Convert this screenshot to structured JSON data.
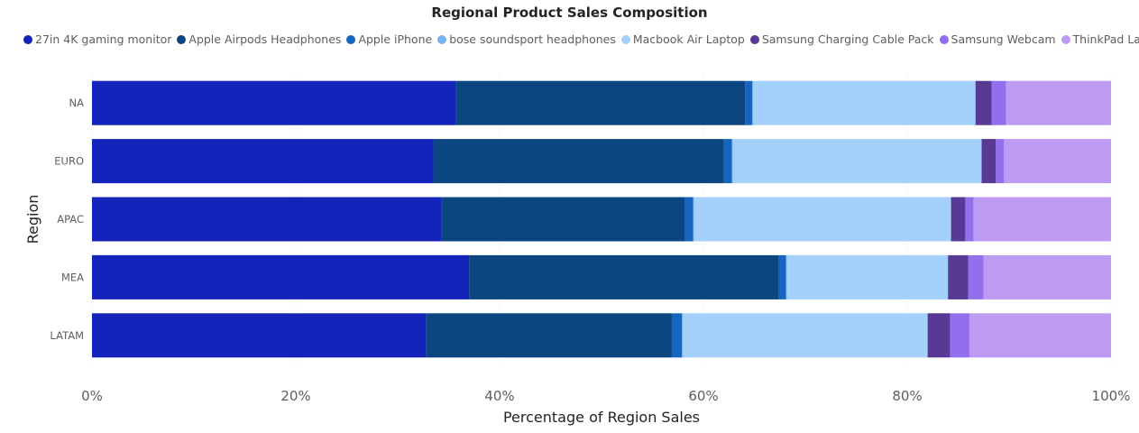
{
  "chart_data": {
    "type": "bar",
    "orientation": "horizontal",
    "stacked": "percent",
    "title": "Regional Product Sales Composition",
    "xlabel": "Percentage of Region Sales",
    "ylabel": "Region",
    "categories": [
      "NA",
      "EURO",
      "APAC",
      "MEA",
      "LATAM"
    ],
    "xlim": [
      0,
      100
    ],
    "xticks": [
      "0%",
      "20%",
      "40%",
      "60%",
      "80%",
      "100%"
    ],
    "grid": true,
    "legend_position": "top-left",
    "series": [
      {
        "name": "27in 4K gaming monitor",
        "color": "#1423B9",
        "values": [
          35.7,
          33.5,
          34.3,
          37.0,
          32.8
        ]
      },
      {
        "name": "Apple Airpods Headphones",
        "color": "#0B4680",
        "values": [
          28.4,
          28.5,
          23.9,
          30.4,
          24.1
        ]
      },
      {
        "name": "Apple iPhone",
        "color": "#1565C0",
        "values": [
          0.7,
          0.8,
          0.8,
          0.7,
          1.0
        ]
      },
      {
        "name": "bose soundsport headphones",
        "color": "#78B4F0",
        "values": [
          0.1,
          0.1,
          0.1,
          0.1,
          0.1
        ]
      },
      {
        "name": "Macbook Air Laptop",
        "color": "#A3D1FC",
        "values": [
          21.8,
          24.4,
          25.2,
          15.8,
          24.0
        ]
      },
      {
        "name": "Samsung Charging Cable Pack",
        "color": "#583994",
        "values": [
          1.6,
          1.4,
          1.4,
          2.0,
          2.2
        ]
      },
      {
        "name": "Samsung Webcam",
        "color": "#926FEC",
        "values": [
          1.4,
          0.8,
          0.8,
          1.5,
          1.9
        ]
      },
      {
        "name": "ThinkPad Laptop",
        "color": "#BD9BF3",
        "values": [
          10.3,
          10.5,
          13.5,
          12.5,
          13.9
        ]
      }
    ]
  }
}
